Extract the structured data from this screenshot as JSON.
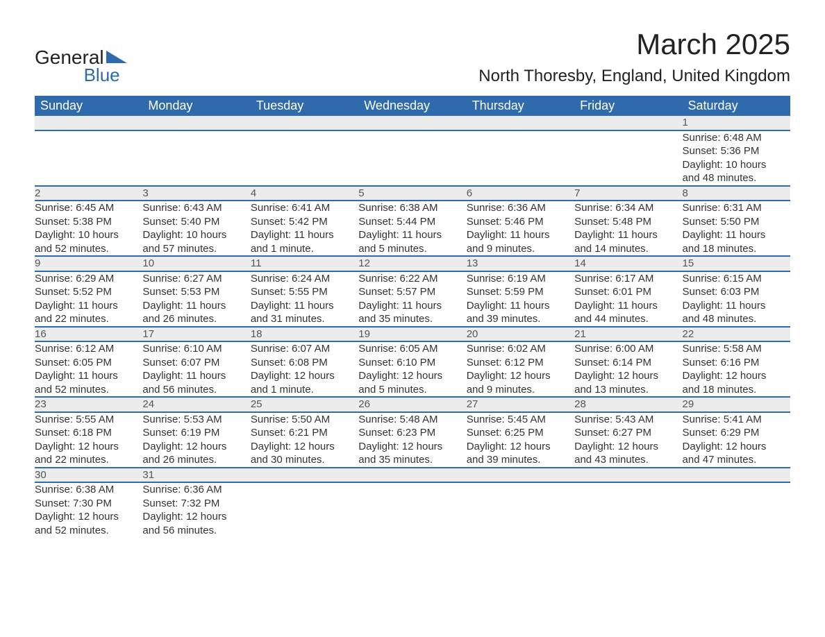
{
  "logo": {
    "line1": "General",
    "line2": "Blue",
    "tri_color": "#2f6aad"
  },
  "title": "March 2025",
  "location": "North Thoresby, England, United Kingdom",
  "colors": {
    "header_bg": "#2f6aad",
    "header_fg": "#ffffff",
    "daynum_bg": "#ececec",
    "daynum_fg": "#555555",
    "cell_fg": "#333333",
    "border": "#2f6aad",
    "page_bg": "#ffffff"
  },
  "columns": [
    "Sunday",
    "Monday",
    "Tuesday",
    "Wednesday",
    "Thursday",
    "Friday",
    "Saturday"
  ],
  "weeks": [
    [
      null,
      null,
      null,
      null,
      null,
      null,
      {
        "day": "1",
        "sunrise": "Sunrise: 6:48 AM",
        "sunset": "Sunset: 5:36 PM",
        "day1": "Daylight: 10 hours",
        "day2": "and 48 minutes."
      }
    ],
    [
      {
        "day": "2",
        "sunrise": "Sunrise: 6:45 AM",
        "sunset": "Sunset: 5:38 PM",
        "day1": "Daylight: 10 hours",
        "day2": "and 52 minutes."
      },
      {
        "day": "3",
        "sunrise": "Sunrise: 6:43 AM",
        "sunset": "Sunset: 5:40 PM",
        "day1": "Daylight: 10 hours",
        "day2": "and 57 minutes."
      },
      {
        "day": "4",
        "sunrise": "Sunrise: 6:41 AM",
        "sunset": "Sunset: 5:42 PM",
        "day1": "Daylight: 11 hours",
        "day2": "and 1 minute."
      },
      {
        "day": "5",
        "sunrise": "Sunrise: 6:38 AM",
        "sunset": "Sunset: 5:44 PM",
        "day1": "Daylight: 11 hours",
        "day2": "and 5 minutes."
      },
      {
        "day": "6",
        "sunrise": "Sunrise: 6:36 AM",
        "sunset": "Sunset: 5:46 PM",
        "day1": "Daylight: 11 hours",
        "day2": "and 9 minutes."
      },
      {
        "day": "7",
        "sunrise": "Sunrise: 6:34 AM",
        "sunset": "Sunset: 5:48 PM",
        "day1": "Daylight: 11 hours",
        "day2": "and 14 minutes."
      },
      {
        "day": "8",
        "sunrise": "Sunrise: 6:31 AM",
        "sunset": "Sunset: 5:50 PM",
        "day1": "Daylight: 11 hours",
        "day2": "and 18 minutes."
      }
    ],
    [
      {
        "day": "9",
        "sunrise": "Sunrise: 6:29 AM",
        "sunset": "Sunset: 5:52 PM",
        "day1": "Daylight: 11 hours",
        "day2": "and 22 minutes."
      },
      {
        "day": "10",
        "sunrise": "Sunrise: 6:27 AM",
        "sunset": "Sunset: 5:53 PM",
        "day1": "Daylight: 11 hours",
        "day2": "and 26 minutes."
      },
      {
        "day": "11",
        "sunrise": "Sunrise: 6:24 AM",
        "sunset": "Sunset: 5:55 PM",
        "day1": "Daylight: 11 hours",
        "day2": "and 31 minutes."
      },
      {
        "day": "12",
        "sunrise": "Sunrise: 6:22 AM",
        "sunset": "Sunset: 5:57 PM",
        "day1": "Daylight: 11 hours",
        "day2": "and 35 minutes."
      },
      {
        "day": "13",
        "sunrise": "Sunrise: 6:19 AM",
        "sunset": "Sunset: 5:59 PM",
        "day1": "Daylight: 11 hours",
        "day2": "and 39 minutes."
      },
      {
        "day": "14",
        "sunrise": "Sunrise: 6:17 AM",
        "sunset": "Sunset: 6:01 PM",
        "day1": "Daylight: 11 hours",
        "day2": "and 44 minutes."
      },
      {
        "day": "15",
        "sunrise": "Sunrise: 6:15 AM",
        "sunset": "Sunset: 6:03 PM",
        "day1": "Daylight: 11 hours",
        "day2": "and 48 minutes."
      }
    ],
    [
      {
        "day": "16",
        "sunrise": "Sunrise: 6:12 AM",
        "sunset": "Sunset: 6:05 PM",
        "day1": "Daylight: 11 hours",
        "day2": "and 52 minutes."
      },
      {
        "day": "17",
        "sunrise": "Sunrise: 6:10 AM",
        "sunset": "Sunset: 6:07 PM",
        "day1": "Daylight: 11 hours",
        "day2": "and 56 minutes."
      },
      {
        "day": "18",
        "sunrise": "Sunrise: 6:07 AM",
        "sunset": "Sunset: 6:08 PM",
        "day1": "Daylight: 12 hours",
        "day2": "and 1 minute."
      },
      {
        "day": "19",
        "sunrise": "Sunrise: 6:05 AM",
        "sunset": "Sunset: 6:10 PM",
        "day1": "Daylight: 12 hours",
        "day2": "and 5 minutes."
      },
      {
        "day": "20",
        "sunrise": "Sunrise: 6:02 AM",
        "sunset": "Sunset: 6:12 PM",
        "day1": "Daylight: 12 hours",
        "day2": "and 9 minutes."
      },
      {
        "day": "21",
        "sunrise": "Sunrise: 6:00 AM",
        "sunset": "Sunset: 6:14 PM",
        "day1": "Daylight: 12 hours",
        "day2": "and 13 minutes."
      },
      {
        "day": "22",
        "sunrise": "Sunrise: 5:58 AM",
        "sunset": "Sunset: 6:16 PM",
        "day1": "Daylight: 12 hours",
        "day2": "and 18 minutes."
      }
    ],
    [
      {
        "day": "23",
        "sunrise": "Sunrise: 5:55 AM",
        "sunset": "Sunset: 6:18 PM",
        "day1": "Daylight: 12 hours",
        "day2": "and 22 minutes."
      },
      {
        "day": "24",
        "sunrise": "Sunrise: 5:53 AM",
        "sunset": "Sunset: 6:19 PM",
        "day1": "Daylight: 12 hours",
        "day2": "and 26 minutes."
      },
      {
        "day": "25",
        "sunrise": "Sunrise: 5:50 AM",
        "sunset": "Sunset: 6:21 PM",
        "day1": "Daylight: 12 hours",
        "day2": "and 30 minutes."
      },
      {
        "day": "26",
        "sunrise": "Sunrise: 5:48 AM",
        "sunset": "Sunset: 6:23 PM",
        "day1": "Daylight: 12 hours",
        "day2": "and 35 minutes."
      },
      {
        "day": "27",
        "sunrise": "Sunrise: 5:45 AM",
        "sunset": "Sunset: 6:25 PM",
        "day1": "Daylight: 12 hours",
        "day2": "and 39 minutes."
      },
      {
        "day": "28",
        "sunrise": "Sunrise: 5:43 AM",
        "sunset": "Sunset: 6:27 PM",
        "day1": "Daylight: 12 hours",
        "day2": "and 43 minutes."
      },
      {
        "day": "29",
        "sunrise": "Sunrise: 5:41 AM",
        "sunset": "Sunset: 6:29 PM",
        "day1": "Daylight: 12 hours",
        "day2": "and 47 minutes."
      }
    ],
    [
      {
        "day": "30",
        "sunrise": "Sunrise: 6:38 AM",
        "sunset": "Sunset: 7:30 PM",
        "day1": "Daylight: 12 hours",
        "day2": "and 52 minutes."
      },
      {
        "day": "31",
        "sunrise": "Sunrise: 6:36 AM",
        "sunset": "Sunset: 7:32 PM",
        "day1": "Daylight: 12 hours",
        "day2": "and 56 minutes."
      },
      null,
      null,
      null,
      null,
      null
    ]
  ]
}
